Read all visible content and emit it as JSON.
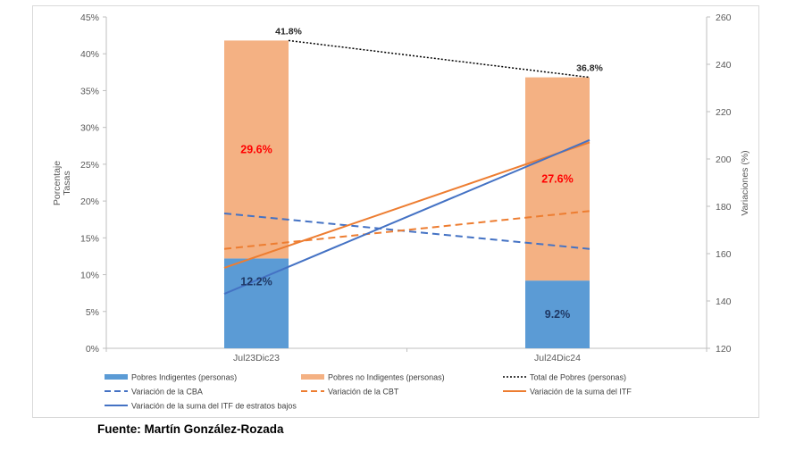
{
  "chart_data": {
    "type": "bar",
    "categories": [
      "Jul23Dic23",
      "Jul24Dic24"
    ],
    "ylabel": "Porcentaje\nTasas",
    "y2label": "Variaciones (%)",
    "ylim": [
      0,
      45
    ],
    "y2lim": [
      120,
      260
    ],
    "yticks": [
      0,
      5,
      10,
      15,
      20,
      25,
      30,
      35,
      40,
      45
    ],
    "y2ticks": [
      120,
      140,
      160,
      180,
      200,
      220,
      240,
      260
    ],
    "ytick_labels": [
      "0%",
      "5%",
      "10%",
      "15%",
      "20%",
      "25%",
      "30%",
      "35%",
      "40%",
      "45%"
    ],
    "y2tick_labels": [
      "120",
      "140",
      "160",
      "180",
      "200",
      "220",
      "240",
      "260"
    ],
    "stacked_bars": [
      {
        "name": "Pobres Indigentes (personas)",
        "color": "#5b9bd5",
        "values": [
          12.2,
          9.2
        ],
        "labels": [
          "12.2%",
          "9.2%"
        ],
        "label_color": "#1f3864"
      },
      {
        "name": "Pobres no Indigentes (personas)",
        "color": "#f4b183",
        "values": [
          29.6,
          27.6
        ],
        "labels": [
          "29.6%",
          "27.6%"
        ],
        "label_color": "#ff0000"
      }
    ],
    "total_line": {
      "name": "Total de Pobres (personas)",
      "color": "#000000",
      "values": [
        41.8,
        36.8
      ],
      "labels": [
        "41.8%",
        "36.8%"
      ]
    },
    "secondary_series": [
      {
        "name": "Variación de la CBA",
        "color": "#4472c4",
        "style": "dashed",
        "values": [
          177,
          162
        ]
      },
      {
        "name": "Variación de la CBT",
        "color": "#ed7d31",
        "style": "dashed",
        "values": [
          162,
          178
        ]
      },
      {
        "name": "Variación de la suma del ITF",
        "color": "#ed7d31",
        "style": "solid",
        "values": [
          154,
          207
        ]
      },
      {
        "name": "Variación de la suma del ITF de estratos bajos",
        "color": "#4472c4",
        "style": "solid",
        "values": [
          143,
          208
        ]
      }
    ],
    "grid": false,
    "legend_position": "bottom"
  },
  "source": "Fuente: Martín González-Rozada"
}
